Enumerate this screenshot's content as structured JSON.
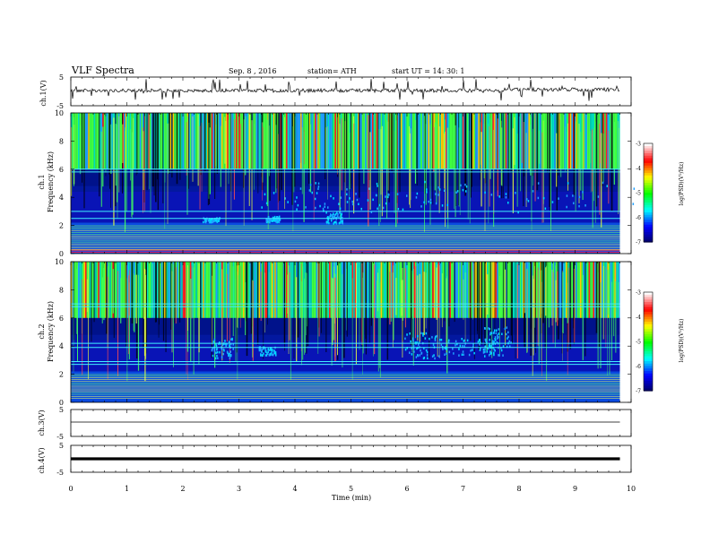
{
  "header": {
    "title": "VLF Spectra",
    "date": "Sep. 8 , 2016",
    "station": "station= ATH",
    "start": "start UT =   14: 30: 1"
  },
  "chart_data": {
    "type": "heatmap",
    "xlabel": "Time (min)",
    "xlim": [
      0,
      10
    ],
    "x_ticks": [
      "0",
      "1",
      "2",
      "3",
      "4",
      "5",
      "6",
      "7",
      "8",
      "9",
      "10"
    ],
    "panels": [
      {
        "id": "ch1-waveform",
        "type": "line",
        "ylabel": "ch.1(V)",
        "ylim": [
          -5,
          5
        ],
        "y_ticks": [
          "5",
          "-5"
        ]
      },
      {
        "id": "ch1-spectrogram",
        "type": "heatmap",
        "ylabel_top": "ch.1",
        "ylabel": "Frequency (kHz)",
        "ylim": [
          0,
          10
        ],
        "y_ticks": [
          "10",
          "8",
          "6",
          "4",
          "2",
          "0"
        ],
        "colorbar": {
          "label": "log(PSD)(V²/Hz)",
          "range": [
            -7,
            -3
          ],
          "ticks": [
            "-3",
            "-4",
            "-5",
            "-6",
            "-7"
          ]
        }
      },
      {
        "id": "ch2-spectrogram",
        "type": "heatmap",
        "ylabel_top": "ch.2",
        "ylabel": "Frequency (kHz)",
        "ylim": [
          0,
          10
        ],
        "y_ticks": [
          "10",
          "8",
          "6",
          "4",
          "2",
          "0"
        ],
        "colorbar": {
          "label": "log(PSD)(V²/Hz)",
          "range": [
            -7,
            -3
          ],
          "ticks": [
            "-3",
            "-4",
            "-5",
            "-6",
            "-7"
          ]
        }
      },
      {
        "id": "ch3-waveform",
        "type": "line",
        "ylabel": "ch.3(V)",
        "ylim": [
          -5,
          5
        ],
        "y_ticks": [
          "5",
          "-5"
        ]
      },
      {
        "id": "ch4-waveform",
        "type": "line",
        "ylabel": "ch.4(V)",
        "ylim": [
          -5,
          5
        ],
        "y_ticks": [
          "5",
          "-5"
        ]
      }
    ],
    "data_extent_min": 9.8,
    "colormap": [
      "#000060",
      "#0000ff",
      "#00ffff",
      "#00ff00",
      "#ffff00",
      "#ff0000",
      "#ffffff"
    ]
  }
}
